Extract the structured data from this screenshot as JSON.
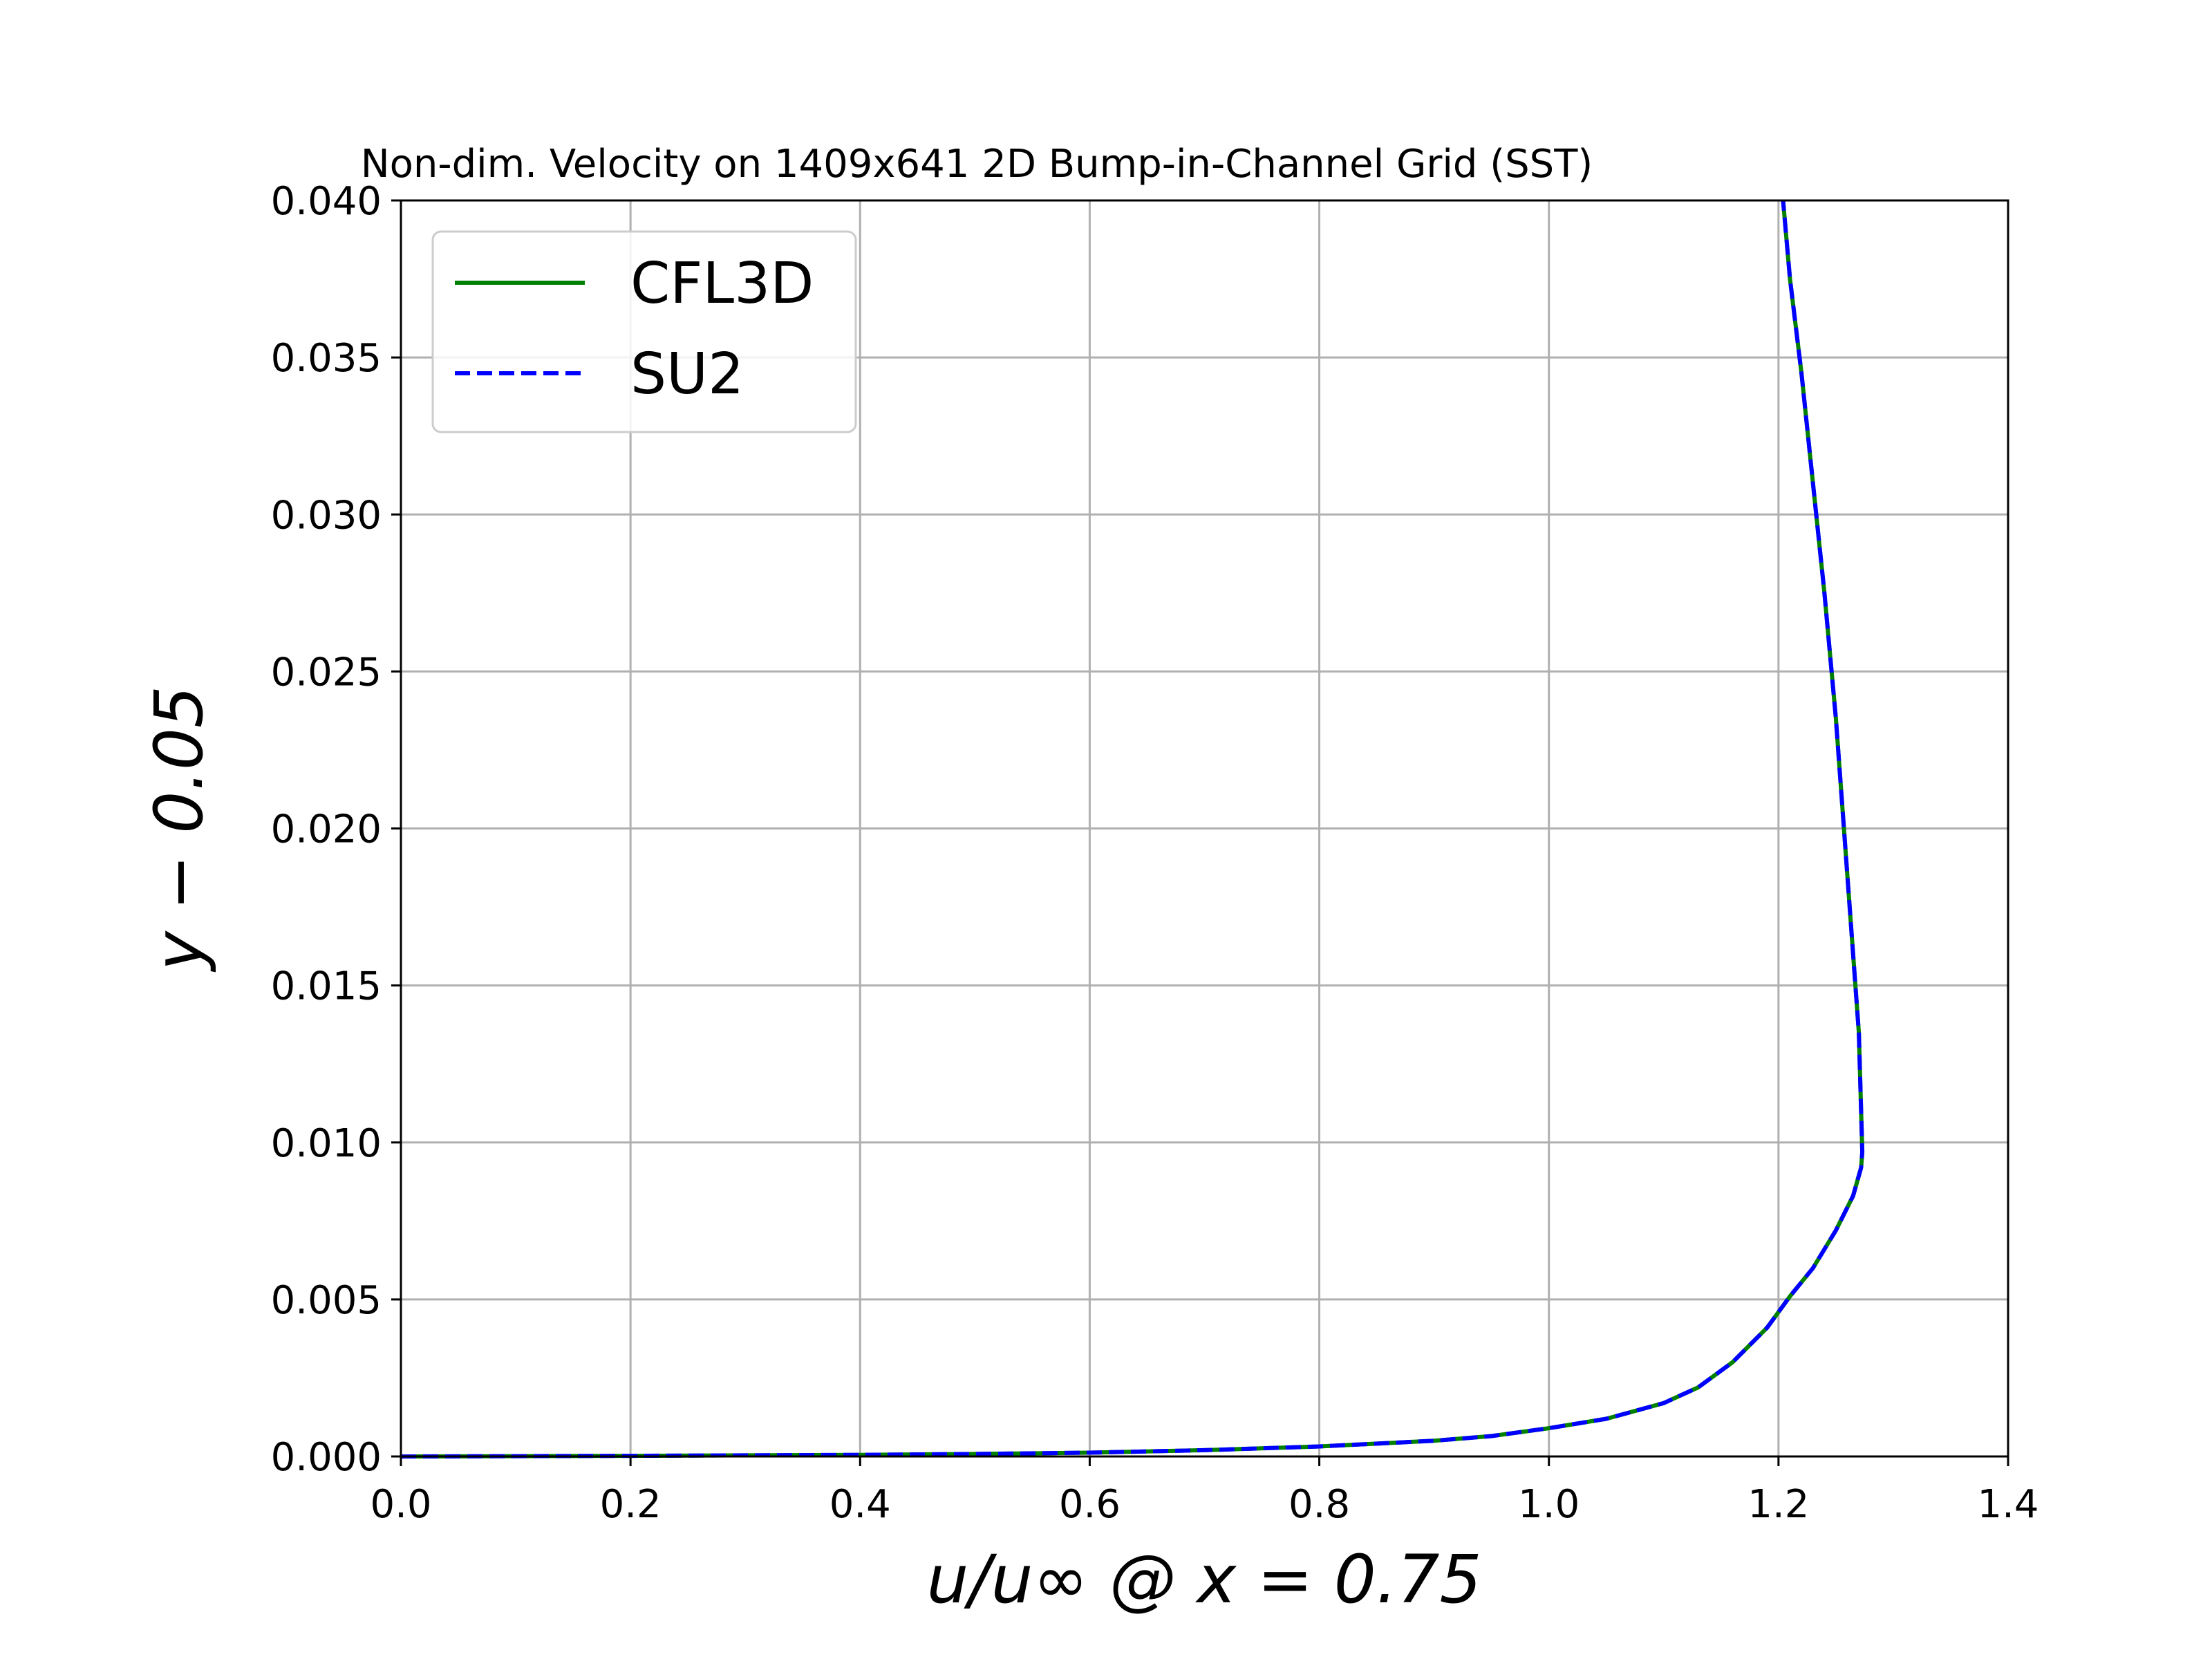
{
  "chart_data": {
    "type": "line",
    "title": "Non-dim. Velocity on 1409x641 2D Bump-in-Channel Grid (SST)",
    "xlabel": "u/u∞ @ x = 0.75",
    "ylabel": "y − 0.05",
    "xlim": [
      0.0,
      1.4
    ],
    "ylim": [
      0.0,
      0.04
    ],
    "xticks": [
      0.0,
      0.2,
      0.4,
      0.6,
      0.8,
      1.0,
      1.2,
      1.4
    ],
    "yticks": [
      0.0,
      0.005,
      0.01,
      0.015,
      0.02,
      0.025,
      0.03,
      0.035,
      0.04
    ],
    "xtick_labels": [
      "0.0",
      "0.2",
      "0.4",
      "0.6",
      "0.8",
      "1.0",
      "1.2",
      "1.4"
    ],
    "ytick_labels": [
      "0.000",
      "0.005",
      "0.010",
      "0.015",
      "0.020",
      "0.025",
      "0.030",
      "0.035",
      "0.040"
    ],
    "grid": true,
    "legend_position": "top-left",
    "series": [
      {
        "name": "CFL3D",
        "color": "#008000",
        "style": "solid",
        "x": [
          0.0,
          0.2,
          0.4,
          0.5,
          0.6,
          0.7,
          0.8,
          0.9,
          0.95,
          1.0,
          1.05,
          1.1,
          1.13,
          1.16,
          1.19,
          1.21,
          1.23,
          1.25,
          1.265,
          1.272,
          1.273,
          1.27,
          1.26,
          1.25,
          1.24,
          1.23,
          1.22,
          1.21,
          1.204
        ],
        "y": [
          0.0,
          2e-05,
          5e-05,
          8e-05,
          0.00012,
          0.0002,
          0.00032,
          0.0005,
          0.00065,
          0.0009,
          0.0012,
          0.0017,
          0.0022,
          0.003,
          0.0041,
          0.0051,
          0.006,
          0.0072,
          0.0083,
          0.0092,
          0.0097,
          0.0135,
          0.0185,
          0.0235,
          0.0275,
          0.031,
          0.0345,
          0.0375,
          0.04
        ]
      },
      {
        "name": "SU2",
        "color": "#0000ff",
        "style": "dashed",
        "x": [
          0.0,
          0.2,
          0.4,
          0.5,
          0.6,
          0.7,
          0.8,
          0.9,
          0.95,
          1.0,
          1.05,
          1.1,
          1.13,
          1.16,
          1.19,
          1.21,
          1.23,
          1.25,
          1.265,
          1.272,
          1.273,
          1.27,
          1.26,
          1.25,
          1.24,
          1.23,
          1.22,
          1.21,
          1.204
        ],
        "y": [
          0.0,
          2e-05,
          5e-05,
          8e-05,
          0.00012,
          0.0002,
          0.00032,
          0.0005,
          0.00065,
          0.0009,
          0.0012,
          0.0017,
          0.0022,
          0.003,
          0.0041,
          0.0051,
          0.006,
          0.0072,
          0.0083,
          0.0092,
          0.0097,
          0.0135,
          0.0185,
          0.0235,
          0.0275,
          0.031,
          0.0345,
          0.0375,
          0.04
        ]
      }
    ]
  }
}
